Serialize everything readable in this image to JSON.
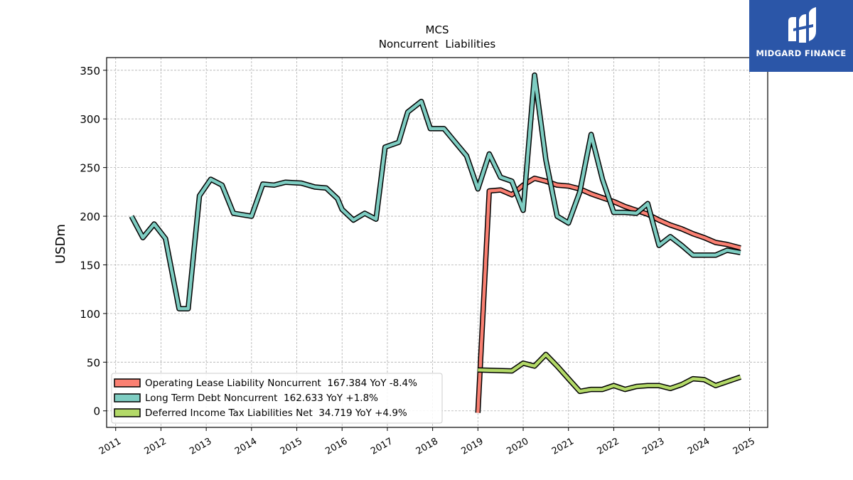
{
  "logo": {
    "text": "MIDGARD FINANCE"
  },
  "chart_data": {
    "type": "line",
    "title": "MCS",
    "subtitle": "Noncurrent  Liabilities",
    "ylabel": "USDm",
    "xlabel": "",
    "ylim": [
      -17,
      363
    ],
    "xlim": [
      2010.8,
      2025.4
    ],
    "grid": true,
    "legend": "bottom-left",
    "yticks": [
      0,
      50,
      100,
      150,
      200,
      250,
      300,
      350
    ],
    "xticks": [
      "2011",
      "2012",
      "2013",
      "2014",
      "2015",
      "2016",
      "2017",
      "2018",
      "2019",
      "2020",
      "2021",
      "2022",
      "2023",
      "2024",
      "2025"
    ],
    "series": [
      {
        "name": "Operating Lease Liability Noncurrent  167.384 YoY -8.4%",
        "color": "#fa8072",
        "points": [
          [
            2019.0,
            -2
          ],
          [
            2019.25,
            226
          ],
          [
            2019.5,
            227
          ],
          [
            2019.75,
            222
          ],
          [
            2020.0,
            232
          ],
          [
            2020.25,
            239
          ],
          [
            2020.5,
            236
          ],
          [
            2020.75,
            232
          ],
          [
            2021.0,
            231
          ],
          [
            2021.25,
            228
          ],
          [
            2021.5,
            223
          ],
          [
            2021.75,
            219
          ],
          [
            2022.0,
            215
          ],
          [
            2022.25,
            210
          ],
          [
            2022.5,
            206
          ],
          [
            2022.75,
            202
          ],
          [
            2023.0,
            196
          ],
          [
            2023.25,
            191
          ],
          [
            2023.5,
            187
          ],
          [
            2023.75,
            182
          ],
          [
            2024.0,
            178
          ],
          [
            2024.25,
            173
          ],
          [
            2024.5,
            171
          ],
          [
            2024.8,
            167.384
          ]
        ]
      },
      {
        "name": "Long Term Debt Noncurrent  162.633 YoY +1.8%",
        "color": "#7ecdc2",
        "points": [
          [
            2011.35,
            200
          ],
          [
            2011.6,
            178
          ],
          [
            2011.85,
            192
          ],
          [
            2012.1,
            177
          ],
          [
            2012.4,
            105
          ],
          [
            2012.6,
            105
          ],
          [
            2012.85,
            221
          ],
          [
            2013.1,
            238
          ],
          [
            2013.35,
            232
          ],
          [
            2013.6,
            203
          ],
          [
            2014.0,
            200
          ],
          [
            2014.25,
            233
          ],
          [
            2014.5,
            232
          ],
          [
            2014.75,
            235
          ],
          [
            2015.1,
            234
          ],
          [
            2015.4,
            230
          ],
          [
            2015.65,
            229
          ],
          [
            2015.9,
            218
          ],
          [
            2016.0,
            207
          ],
          [
            2016.25,
            196
          ],
          [
            2016.5,
            203
          ],
          [
            2016.75,
            197
          ],
          [
            2016.95,
            271
          ],
          [
            2017.25,
            276
          ],
          [
            2017.45,
            307
          ],
          [
            2017.75,
            318
          ],
          [
            2017.95,
            290
          ],
          [
            2018.25,
            290
          ],
          [
            2018.5,
            276
          ],
          [
            2018.75,
            262
          ],
          [
            2019.0,
            228
          ],
          [
            2019.25,
            264
          ],
          [
            2019.5,
            240
          ],
          [
            2019.75,
            236
          ],
          [
            2020.0,
            206
          ],
          [
            2020.25,
            345
          ],
          [
            2020.5,
            258
          ],
          [
            2020.75,
            200
          ],
          [
            2021.0,
            193
          ],
          [
            2021.25,
            225
          ],
          [
            2021.5,
            284
          ],
          [
            2021.75,
            238
          ],
          [
            2022.0,
            204
          ],
          [
            2022.25,
            204
          ],
          [
            2022.5,
            203
          ],
          [
            2022.75,
            213
          ],
          [
            2023.0,
            170
          ],
          [
            2023.25,
            179
          ],
          [
            2023.5,
            170
          ],
          [
            2023.75,
            160
          ],
          [
            2024.0,
            160
          ],
          [
            2024.25,
            160
          ],
          [
            2024.5,
            165
          ],
          [
            2024.8,
            162.633
          ]
        ]
      },
      {
        "name": "Deferred Income Tax Liabilities Net  34.719 YoY +4.9%",
        "color": "#b3d968",
        "points": [
          [
            2019.0,
            42
          ],
          [
            2019.75,
            41
          ],
          [
            2020.0,
            49
          ],
          [
            2020.25,
            46
          ],
          [
            2020.5,
            58
          ],
          [
            2020.75,
            46
          ],
          [
            2021.0,
            33
          ],
          [
            2021.25,
            20
          ],
          [
            2021.5,
            22
          ],
          [
            2021.75,
            22
          ],
          [
            2022.0,
            26
          ],
          [
            2022.25,
            22
          ],
          [
            2022.5,
            25
          ],
          [
            2022.75,
            26
          ],
          [
            2023.0,
            26
          ],
          [
            2023.25,
            23
          ],
          [
            2023.5,
            27
          ],
          [
            2023.75,
            33
          ],
          [
            2024.0,
            32
          ],
          [
            2024.25,
            26
          ],
          [
            2024.5,
            30
          ],
          [
            2024.8,
            34.719
          ]
        ]
      }
    ]
  }
}
